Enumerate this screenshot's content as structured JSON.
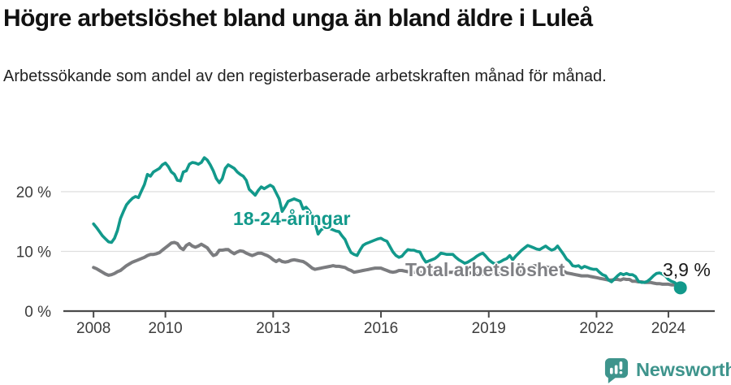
{
  "header": {
    "title": "Högre arbetslöshet bland unga än bland äldre i Luleå",
    "subtitle": "Arbetssökande som andel av den registerbaserade arbetskraften månad för månad."
  },
  "chart_data": {
    "type": "line",
    "x_unit": "monthly, Jan 2008 – May 2024 (decimal years)",
    "x_start_year": 2008,
    "xlim": [
      2007.16,
      2025.29
    ],
    "ylim": [
      0,
      30
    ],
    "grid": "horizontal",
    "axis_color": "#4a4a4a",
    "grid_color": "#dedede",
    "x_ticks": [
      {
        "label": "2008",
        "value": 2008
      },
      {
        "label": "2010",
        "value": 2010
      },
      {
        "label": "2013",
        "value": 2013
      },
      {
        "label": "2016",
        "value": 2016
      },
      {
        "label": "2019",
        "value": 2019
      },
      {
        "label": "2022",
        "value": 2022
      },
      {
        "label": "2024",
        "value": 2024
      }
    ],
    "y_ticks": [
      {
        "label": "0 %",
        "value": 0
      },
      {
        "label": "10 %",
        "value": 10
      },
      {
        "label": "20 %",
        "value": 20
      }
    ],
    "series": [
      {
        "name": "18-24-åringar",
        "color": "#12998b",
        "values": [
          14.6,
          14.0,
          13.3,
          12.6,
          12.1,
          11.6,
          11.5,
          12.2,
          13.5,
          15.5,
          16.7,
          17.8,
          18.4,
          18.9,
          19.2,
          19.0,
          20.1,
          21.2,
          22.9,
          22.6,
          23.3,
          23.6,
          23.9,
          24.5,
          24.8,
          24.2,
          23.3,
          22.9,
          21.9,
          21.8,
          23.3,
          23.5,
          24.6,
          24.9,
          24.8,
          24.6,
          24.9,
          25.7,
          25.3,
          24.5,
          23.5,
          22.2,
          21.5,
          22.2,
          23.9,
          24.5,
          24.2,
          23.9,
          23.3,
          22.9,
          22.6,
          21.9,
          20.4,
          19.9,
          19.4,
          20.2,
          20.8,
          20.5,
          20.8,
          21.1,
          20.8,
          19.8,
          18.8,
          16.7,
          17.5,
          18.4,
          18.6,
          18.8,
          18.6,
          18.4,
          17.1,
          17.4,
          16.8,
          15.9,
          14.8,
          12.9,
          13.6,
          13.9,
          14.0,
          13.8,
          13.6,
          13.4,
          13.3,
          12.6,
          12.0,
          10.8,
          9.8,
          9.5,
          9.3,
          10.2,
          11.0,
          11.3,
          11.5,
          11.7,
          11.9,
          12.1,
          12.2,
          11.9,
          11.7,
          10.8,
          9.9,
          9.3,
          9.0,
          9.2,
          9.8,
          10.3,
          10.2,
          10.2,
          10.0,
          9.9,
          8.9,
          8.2,
          8.4,
          8.6,
          8.8,
          9.2,
          9.7,
          9.6,
          9.5,
          9.5,
          9.5,
          9.0,
          8.6,
          8.3,
          8.0,
          8.2,
          8.5,
          8.8,
          9.2,
          9.5,
          9.7,
          9.2,
          8.6,
          8.2,
          7.9,
          8.1,
          8.3,
          8.6,
          8.8,
          9.3,
          8.6,
          9.2,
          9.7,
          10.2,
          10.6,
          11.0,
          10.8,
          10.6,
          10.4,
          10.3,
          10.6,
          10.9,
          10.5,
          10.2,
          10.4,
          10.9,
          10.2,
          9.5,
          8.7,
          8.3,
          7.6,
          7.5,
          7.6,
          7.2,
          7.5,
          7.3,
          7.1,
          7.0,
          7.0,
          6.5,
          6.1,
          5.9,
          5.2,
          4.9,
          5.4,
          5.9,
          6.3,
          6.1,
          6.3,
          6.1,
          6.1,
          5.8,
          5.0,
          4.8,
          4.8,
          5.0,
          5.4,
          5.9,
          6.3,
          6.4,
          6.2,
          5.9,
          5.3,
          5.0,
          4.8,
          4.4,
          3.9
        ]
      },
      {
        "name": "Total arbetslöshet",
        "color": "#7b7c7f",
        "values": [
          7.3,
          7.1,
          6.8,
          6.5,
          6.2,
          6.0,
          6.1,
          6.3,
          6.6,
          6.8,
          7.2,
          7.6,
          7.9,
          8.2,
          8.4,
          8.6,
          8.8,
          9.0,
          9.3,
          9.5,
          9.5,
          9.6,
          9.8,
          10.2,
          10.6,
          11.0,
          11.4,
          11.5,
          11.3,
          10.6,
          10.3,
          11.0,
          11.3,
          10.9,
          10.7,
          10.9,
          11.2,
          10.9,
          10.6,
          9.9,
          9.3,
          9.5,
          10.2,
          10.2,
          10.3,
          10.3,
          9.9,
          9.6,
          9.9,
          10.1,
          10.0,
          9.7,
          9.5,
          9.3,
          9.5,
          9.7,
          9.7,
          9.5,
          9.3,
          9.0,
          8.6,
          8.3,
          8.6,
          8.3,
          8.2,
          8.3,
          8.5,
          8.6,
          8.5,
          8.4,
          8.3,
          8.0,
          7.6,
          7.2,
          7.0,
          7.1,
          7.2,
          7.3,
          7.4,
          7.5,
          7.6,
          7.5,
          7.5,
          7.4,
          7.3,
          7.0,
          6.8,
          6.5,
          6.6,
          6.7,
          6.8,
          6.9,
          7.0,
          7.1,
          7.2,
          7.2,
          7.2,
          7.0,
          6.8,
          6.6,
          6.5,
          6.6,
          6.8,
          6.8,
          6.7,
          6.6,
          6.5,
          6.5,
          6.6,
          6.5,
          6.4,
          6.3,
          6.4,
          6.5,
          6.6,
          6.6,
          6.5,
          6.4,
          6.4,
          6.5,
          6.5,
          6.4,
          6.3,
          6.2,
          6.2,
          6.3,
          6.4,
          6.4,
          6.3,
          6.3,
          6.2,
          6.3,
          6.4,
          6.3,
          6.3,
          6.2,
          6.3,
          6.4,
          6.5,
          6.5,
          6.4,
          6.4,
          6.5,
          6.6,
          6.8,
          7.0,
          7.3,
          7.6,
          7.6,
          7.5,
          7.5,
          7.4,
          7.3,
          7.2,
          7.2,
          7.1,
          7.0,
          6.7,
          6.4,
          6.3,
          6.2,
          6.1,
          6.0,
          5.9,
          5.9,
          5.9,
          5.8,
          5.7,
          5.6,
          5.5,
          5.4,
          5.3,
          5.2,
          5.2,
          5.3,
          5.3,
          5.2,
          5.4,
          5.3,
          5.3,
          5.0,
          5.0,
          4.9,
          4.9,
          4.8,
          4.8,
          4.8,
          4.7,
          4.6,
          4.6,
          4.5,
          4.5,
          4.5,
          4.4,
          4.4,
          4.3,
          4.2
        ]
      }
    ],
    "end_annotation": {
      "label": "3,9 %",
      "value": 3.9,
      "series": "18-24-åringar"
    }
  },
  "footer": {
    "brand": "Newsworthy",
    "brand_color": "#3e948c",
    "logo_icon": "bar-chart-speech-bubble"
  }
}
